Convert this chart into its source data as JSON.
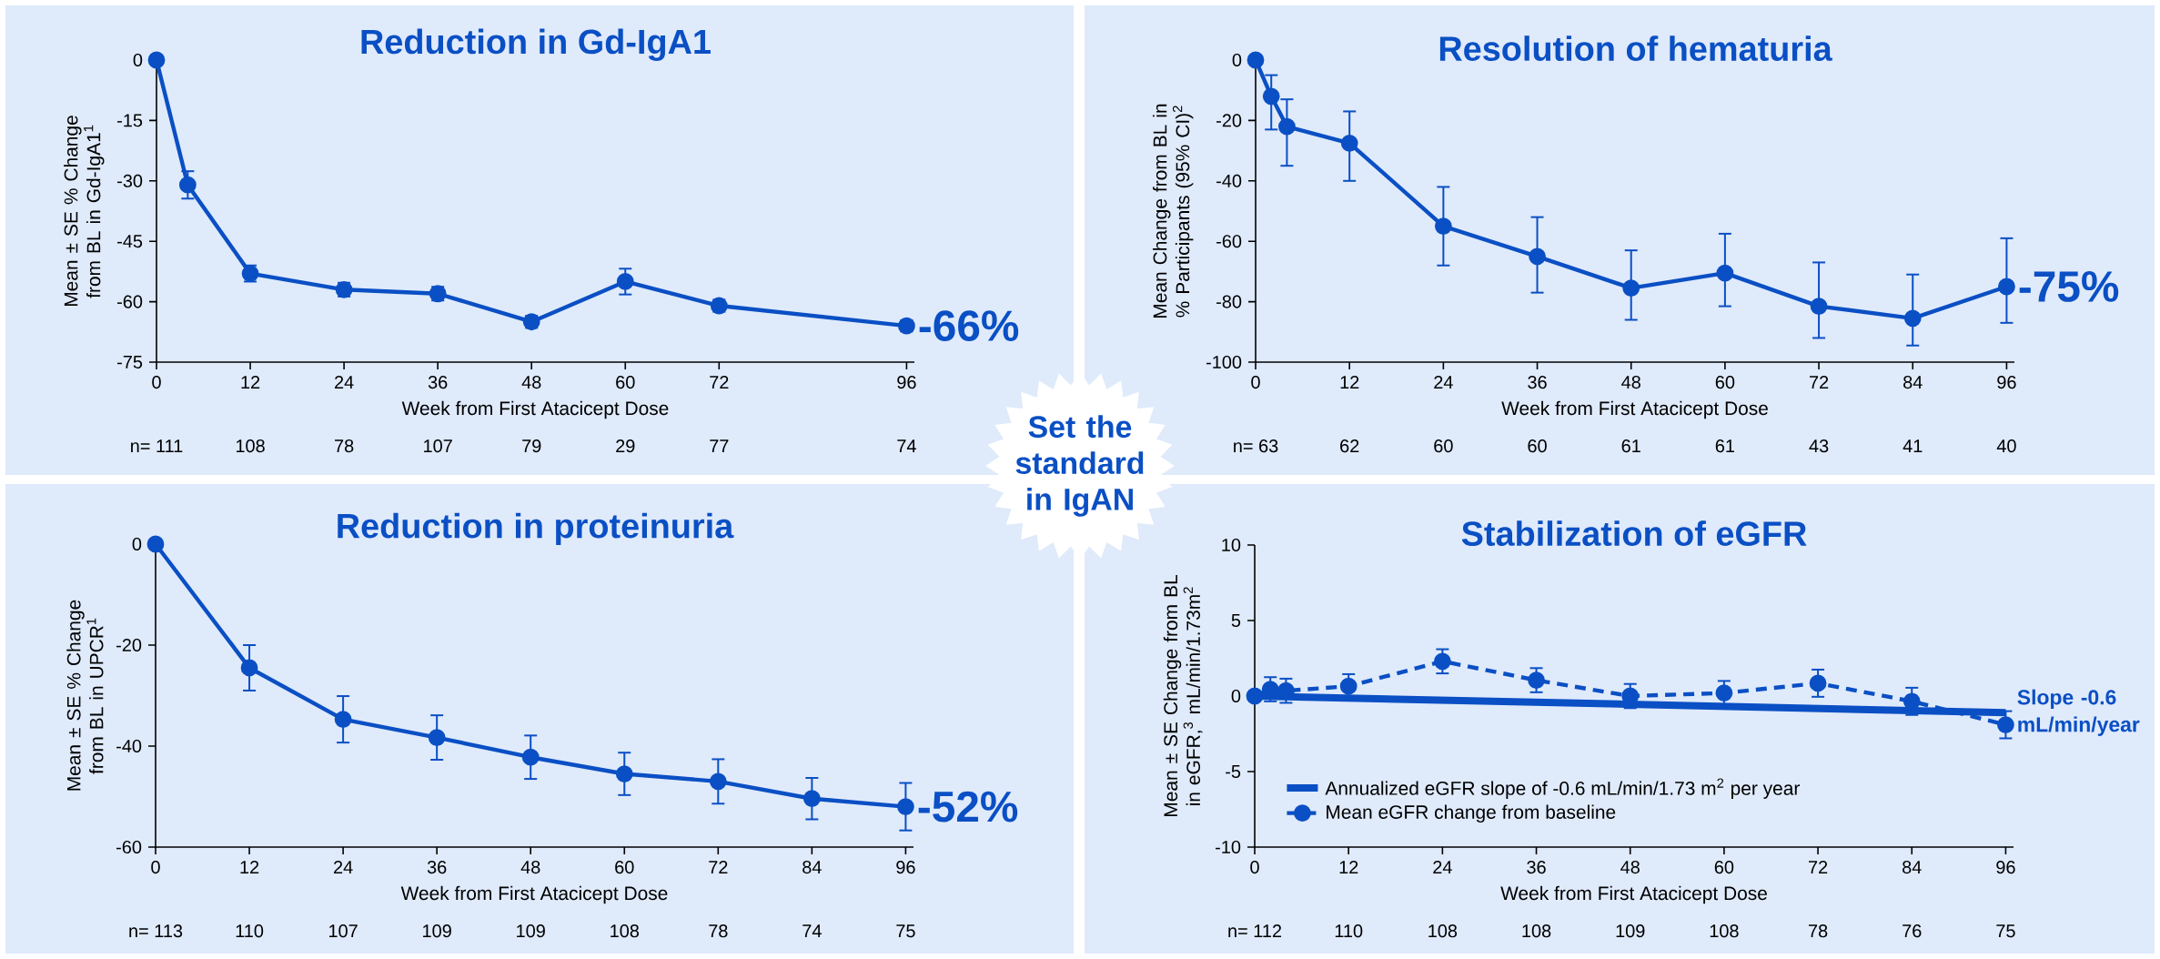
{
  "chart_data": [
    {
      "type": "line",
      "title": "Reduction in Gd-IgA1",
      "xlabel": "Week from First Atacicept Dose",
      "ylabel": "Mean ± SE % Change from BL in Gd-IgA1$^{1}$",
      "color": "#0a4fc4",
      "marker": "circle",
      "x": [
        0,
        4,
        12,
        24,
        36,
        48,
        60,
        72,
        96
      ],
      "values": [
        0,
        -31,
        -53,
        -57,
        -58,
        -65,
        -55,
        -61,
        -66
      ],
      "errors": [
        null,
        3.4,
        2,
        1.7,
        1.7,
        1.5,
        3.2,
        1.5,
        1.4
      ],
      "xlim": [
        0,
        97
      ],
      "ylim": [
        -75,
        0
      ],
      "xticks": [
        0,
        12,
        24,
        36,
        48,
        60,
        72,
        96
      ],
      "yticks": [
        0,
        -15,
        -30,
        -45,
        -60,
        -75
      ],
      "annotations": [
        "n= 111",
        "108",
        "78",
        "107",
        "79",
        "29",
        "77",
        "74",
        "-66%"
      ]
    },
    {
      "type": "line",
      "title": "Resolution of hematuria",
      "xlabel": "Week from First Atacicept Dose",
      "ylabel": "Mean Change from BL in % Participants (95% CI)$^{2}$",
      "color": "#0a4fc4",
      "marker": "circle",
      "x": [
        0,
        2,
        4,
        12,
        24,
        36,
        48,
        60,
        72,
        84,
        96
      ],
      "values": [
        0,
        -12,
        -22,
        -27.5,
        -55,
        -65,
        -75.5,
        -70.5,
        -81.5,
        -85.5,
        -75
      ],
      "errors": [
        null,
        [
          -23,
          -5
        ],
        [
          -35,
          -13
        ],
        [
          -40,
          -17
        ],
        [
          -68,
          -42
        ],
        [
          -77,
          -52
        ],
        [
          -86,
          -63
        ],
        [
          -81.5,
          -57.5
        ],
        [
          -92,
          -67
        ],
        [
          -94.5,
          -71
        ],
        [
          -87,
          -59
        ]
      ],
      "xlim": [
        0,
        97
      ],
      "ylim": [
        -100,
        0
      ],
      "xticks": [
        0,
        12,
        24,
        36,
        48,
        60,
        72,
        84,
        96
      ],
      "yticks": [
        0,
        -20,
        -40,
        -60,
        -80,
        -100
      ],
      "annotations": [
        "n= 63",
        "62",
        "60",
        "60",
        "61",
        "61",
        "43",
        "41",
        "40",
        "-75%"
      ]
    },
    {
      "type": "line",
      "title": "Reduction in proteinuria",
      "xlabel": "Week from First Atacicept Dose",
      "ylabel": "Mean ± SE % Change from BL in UPCR$^{1}$",
      "color": "#0a4fc4",
      "marker": "circle",
      "x": [
        0,
        12,
        24,
        36,
        48,
        60,
        72,
        84,
        96
      ],
      "values": [
        0,
        -24.5,
        -34.7,
        -38.3,
        -42.2,
        -45.5,
        -47,
        -50.4,
        -52
      ],
      "errors": [
        null,
        4.5,
        4.6,
        4.4,
        4.3,
        4.2,
        4.4,
        4.1,
        4.7
      ],
      "xlim": [
        0,
        97
      ],
      "ylim": [
        -60,
        0
      ],
      "xticks": [
        0,
        12,
        24,
        36,
        48,
        60,
        72,
        84,
        96
      ],
      "yticks": [
        0,
        -20,
        -40,
        -60
      ],
      "annotations": [
        "n= 113",
        "110",
        "107",
        "109",
        "109",
        "108",
        "78",
        "74",
        "75",
        "-52%"
      ]
    },
    {
      "type": "line",
      "title": "Stabilization of eGFR",
      "xlabel": "Week from First Atacicept Dose",
      "ylabel": "Mean ± SE Change from BL in eGFR,$^{3}$ mL/min/1.73m$^{2}$",
      "legend": "bottom left",
      "series": [
        {
          "name": "Annualized eGFR slope of -0.6 mL/min/1.73 m$^{2}$ per year",
          "color": "#0a4fc4",
          "x": [
            0,
            96
          ],
          "values": [
            0,
            -1.1
          ],
          "line_style": "solid"
        },
        {
          "name": "Mean eGFR change from baseline",
          "color": "#0a4fc4",
          "x": [
            0,
            2,
            4,
            12,
            24,
            36,
            48,
            60,
            72,
            84,
            96
          ],
          "values": [
            0,
            0.45,
            0.35,
            0.65,
            2.3,
            1.05,
            0,
            0.2,
            0.85,
            -0.35,
            -1.9
          ],
          "errors": [
            null,
            0.8,
            0.8,
            0.8,
            0.8,
            0.8,
            0.8,
            0.8,
            0.9,
            0.9,
            0.9
          ],
          "marker": "circle",
          "line_style": "dashed"
        }
      ],
      "xlim": [
        0,
        97
      ],
      "ylim": [
        -10,
        10
      ],
      "xticks": [
        0,
        12,
        24,
        36,
        48,
        60,
        72,
        84,
        96
      ],
      "yticks": [
        10,
        5,
        0,
        -5,
        -10
      ],
      "annotations": [
        "n= 112",
        "110",
        "108",
        "108",
        "109",
        "108",
        "78",
        "76",
        "75",
        "Slope -0.6 mL/min/year"
      ]
    },
    {
      "type": "other",
      "annotations": [
        "Set the standard in IgAN"
      ]
    }
  ]
}
